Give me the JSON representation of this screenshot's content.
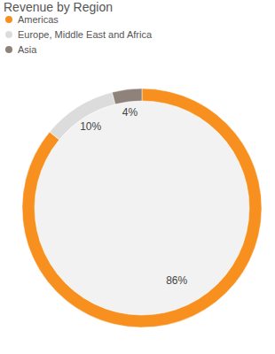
{
  "chart_data": {
    "type": "pie",
    "title": "Revenue by Region",
    "categories": [
      "Americas",
      "Europe, Middle East and Africa",
      "Asia"
    ],
    "values": [
      86,
      10,
      4
    ],
    "value_labels": [
      "86%",
      "10%",
      "4%"
    ],
    "colors": [
      "#f7901e",
      "#dcdcdc",
      "#8f827a"
    ],
    "data_labels": true,
    "legend": "top-left"
  }
}
